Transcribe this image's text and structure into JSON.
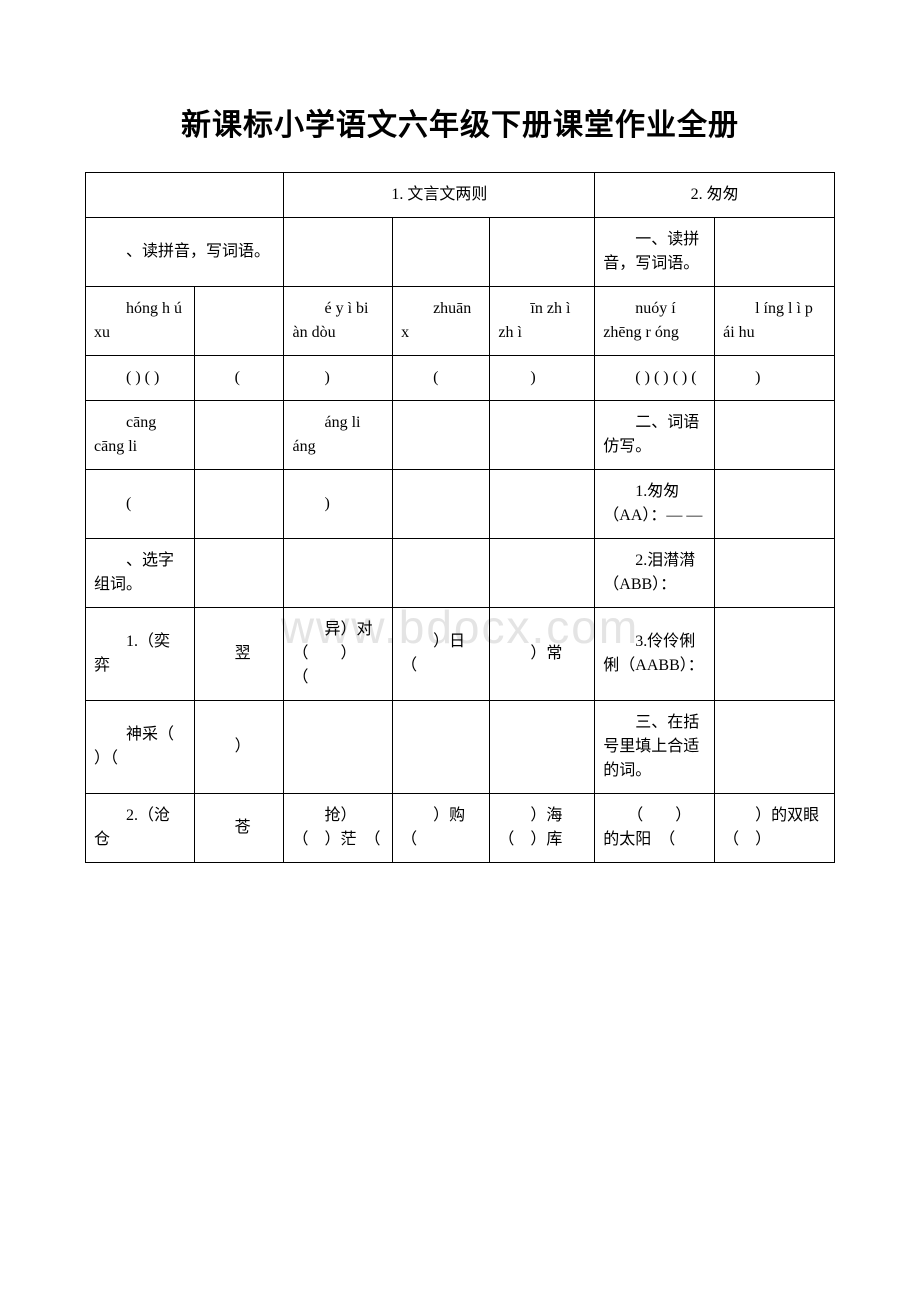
{
  "title": "新课标小学语文六年级下册课堂作业全册",
  "watermark": "www.bdocx.com",
  "header_row": {
    "c3": "1. 文言文两则",
    "c6": "2. 匆匆"
  },
  "r1": {
    "c1": "　　、读拼音，写词语。",
    "c6": "　　一、读拼音，写词语。"
  },
  "r2": {
    "c1": "　　hóng h ú xu",
    "c3": "　　é y ì bi àn dòu",
    "c4": "　　zhuān x",
    "c5": "　　īn zh ì zh ì",
    "c6": "　　nuóy í zhēng r óng",
    "c7": "　　l íng l ì p ái hu"
  },
  "r3": {
    "c1": "　　( ) ( )",
    "c2": "　　(",
    "c3": "　　)",
    "c4": "　　(",
    "c5": "　　)",
    "c6": "　　( ) ( ) ( ) (",
    "c7": "　　)"
  },
  "r4": {
    "c1": "　　cāng cāng li",
    "c3": "　　áng li áng",
    "c6": "　　二、词语仿写。"
  },
  "r5": {
    "c1": "　　(",
    "c3": "　　)",
    "c6": "　　1.匆匆（AA）：— —"
  },
  "r6": {
    "c1": "　　、选字组词。",
    "c6": "　　2.泪潸潸（ABB）："
  },
  "r7": {
    "c1": "　　1.（奕 弈",
    "c2": "　　翌",
    "c3": "　　异）对（　　）　　（",
    "c4": "　　）日　（",
    "c5": "　　）常",
    "c6": "　　3.伶伶俐俐（AABB）："
  },
  "r8": {
    "c1": "　　神采（ ）（",
    "c2": "　　）",
    "c6": "　　三、在括号里填上合适的词。"
  },
  "r9": {
    "c1": "　　2.（沧 仓",
    "c2": "　　苍",
    "c3": "　　抢）　（　）茫　（",
    "c4": "　　）购　（",
    "c5": "　　）海　（　）库",
    "c6": "　　（　　）的太阳　（",
    "c7": "　　）的双眼　（　）"
  }
}
